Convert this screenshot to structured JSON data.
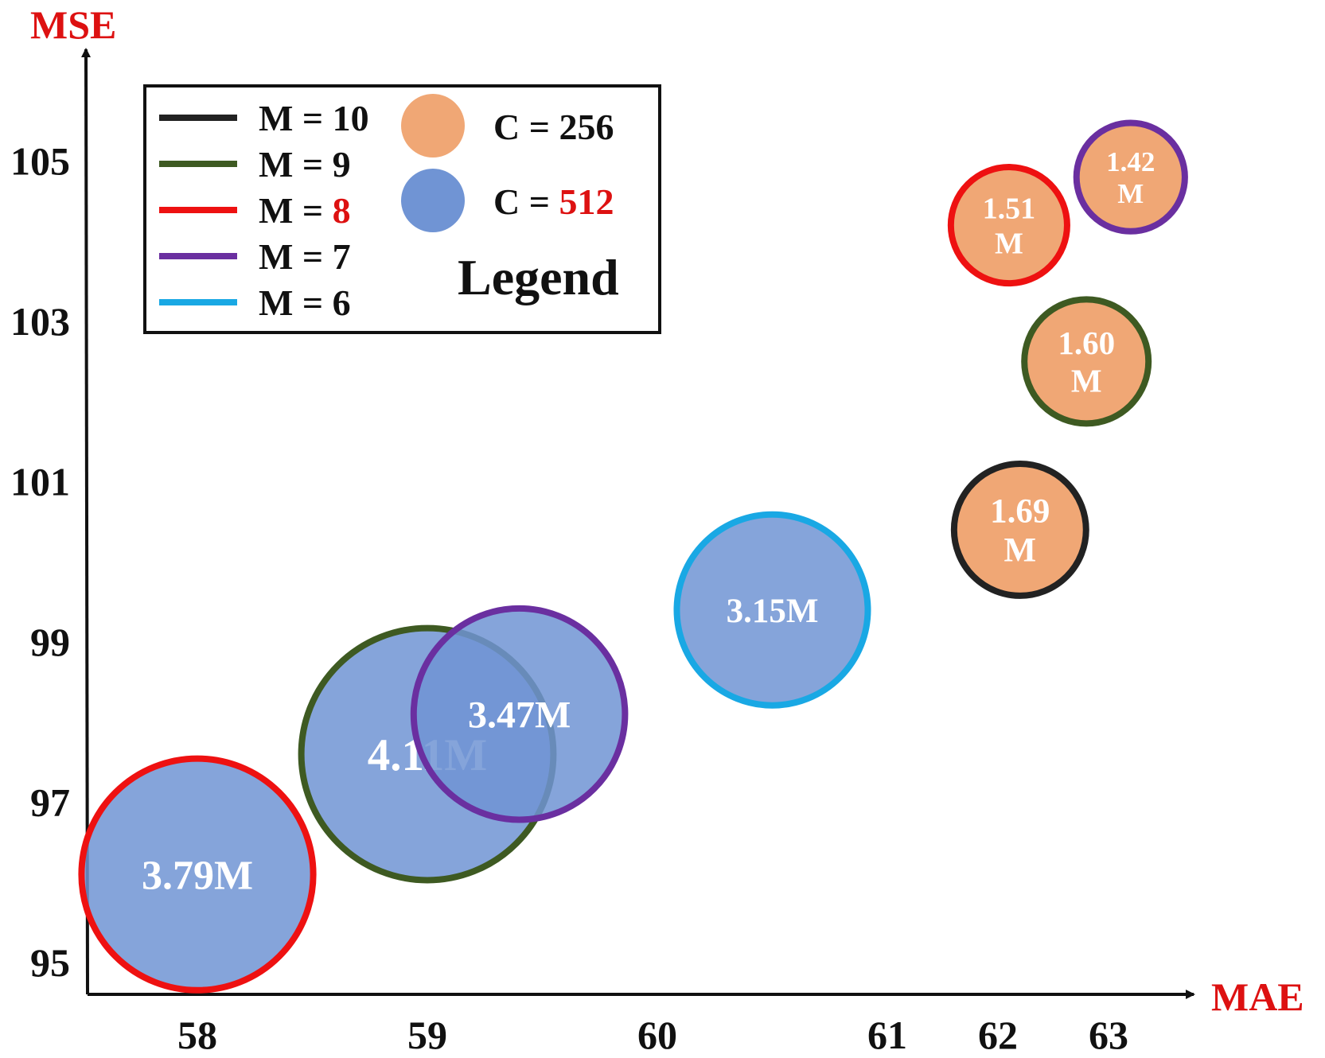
{
  "colors": {
    "M10": "#222222",
    "M9": "#3e5a22",
    "M8": "#ee1111",
    "M7": "#6a2fa0",
    "M6": "#19a8e4",
    "C256": "#f0a775",
    "C512": "#7094d4",
    "axis_title": "#dd1111",
    "highlight": "#dd1111"
  },
  "chart_data": {
    "type": "scatter",
    "subtype": "bubble",
    "xlabel": "MAE",
    "ylabel": "MSE",
    "x_ticks": [
      "58",
      "59",
      "60",
      "61",
      "62",
      "63"
    ],
    "y_ticks": [
      "95",
      "97",
      "99",
      "101",
      "103",
      "105"
    ],
    "legend": {
      "title": "Legend",
      "placement": "top-left",
      "lines": [
        {
          "key": "M10",
          "prefix": "M = ",
          "value": "10"
        },
        {
          "key": "M9",
          "prefix": "M = ",
          "value": "9"
        },
        {
          "key": "M8",
          "prefix": "M = ",
          "value": "8",
          "highlight": true
        },
        {
          "key": "M7",
          "prefix": "M = ",
          "value": "7"
        },
        {
          "key": "M6",
          "prefix": "M = ",
          "value": "6"
        }
      ],
      "fills": [
        {
          "key": "C256",
          "prefix": "C = ",
          "value": "256"
        },
        {
          "key": "C512",
          "prefix": "C = ",
          "value": "512",
          "highlight": true
        }
      ]
    },
    "points": [
      {
        "x": 58.0,
        "y": 96.1,
        "size": 3.79,
        "label": [
          "3.79M"
        ],
        "M": "M8",
        "C": "C512"
      },
      {
        "x": 59.0,
        "y": 97.6,
        "size": 4.11,
        "label": [
          "4.11M"
        ],
        "M": "M9",
        "C": "C512"
      },
      {
        "x": 59.4,
        "y": 98.1,
        "size": 3.47,
        "label": [
          "3.47M"
        ],
        "M": "M7",
        "C": "C512"
      },
      {
        "x": 60.5,
        "y": 99.4,
        "size": 3.15,
        "label": [
          "3.15M"
        ],
        "M": "M6",
        "C": "C512"
      },
      {
        "x": 62.2,
        "y": 100.4,
        "size": 1.69,
        "label": [
          "1.69",
          "M"
        ],
        "M": "M10",
        "C": "C256"
      },
      {
        "x": 62.8,
        "y": 102.5,
        "size": 1.6,
        "label": [
          "1.60",
          "M"
        ],
        "M": "M9",
        "C": "C256"
      },
      {
        "x": 62.1,
        "y": 104.2,
        "size": 1.51,
        "label": [
          "1.51",
          "M"
        ],
        "M": "M8",
        "C": "C256"
      },
      {
        "x": 63.2,
        "y": 104.8,
        "size": 1.42,
        "label": [
          "1.42",
          "M"
        ],
        "M": "M7",
        "C": "C256"
      }
    ]
  }
}
